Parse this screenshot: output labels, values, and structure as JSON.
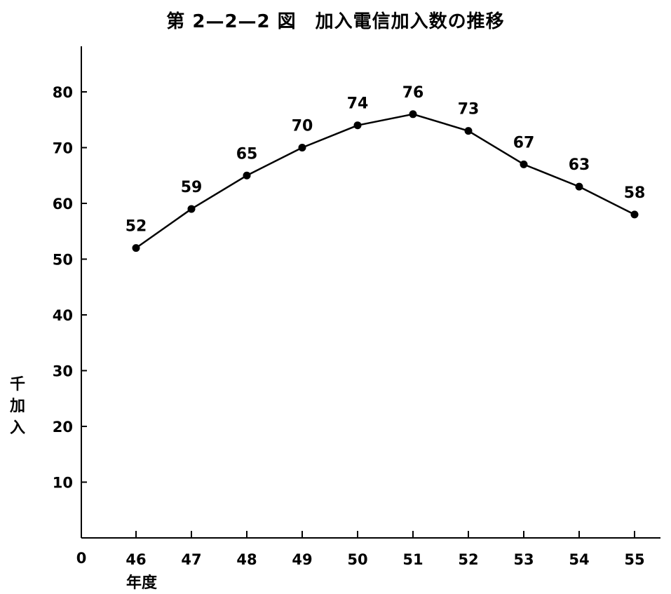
{
  "chart_data": {
    "type": "line",
    "title": "第 2—2—2 図　加入電信加入数の推移",
    "x_origin_label": "0",
    "xlabel": "年度",
    "ylabel": "千加入",
    "categories": [
      "46",
      "47",
      "48",
      "49",
      "50",
      "51",
      "52",
      "53",
      "54",
      "55"
    ],
    "values": [
      52,
      59,
      65,
      70,
      74,
      76,
      73,
      67,
      63,
      58
    ],
    "point_labels": [
      "52",
      "59",
      "65",
      "70",
      "74",
      "76",
      "73",
      "67",
      "63",
      "58"
    ],
    "yticks": [
      10,
      20,
      30,
      40,
      50,
      60,
      70,
      80
    ],
    "ytick_labels": [
      "10",
      "20",
      "30",
      "40",
      "50",
      "60",
      "70",
      "80"
    ],
    "ylim": [
      0,
      80
    ],
    "grid": false,
    "legend": "none",
    "line_color": "#000000",
    "marker": "filled-circle"
  }
}
